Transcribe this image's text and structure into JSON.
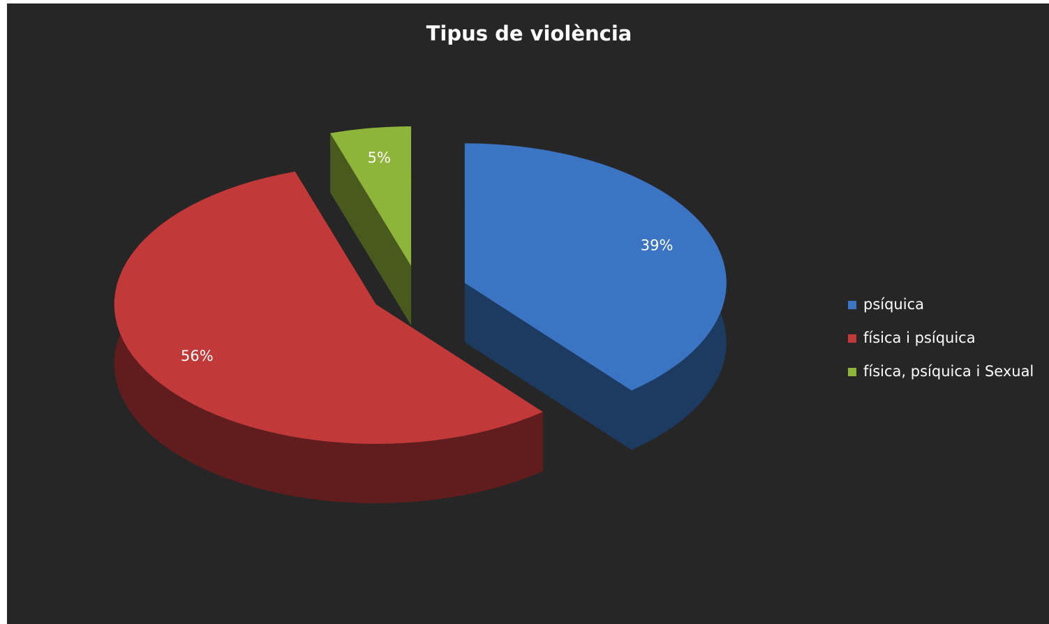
{
  "chart_data": {
    "type": "pie",
    "title": "Tipus de violència",
    "categories": [
      "psíquica",
      "física i psíquica",
      "física, psíquica i Sexual"
    ],
    "values": [
      39,
      56,
      5
    ],
    "value_labels": [
      "39%",
      "56%",
      "5%"
    ],
    "colors": [
      "#3a74c2",
      "#c2393a",
      "#8fb43a"
    ],
    "legend": "right"
  }
}
